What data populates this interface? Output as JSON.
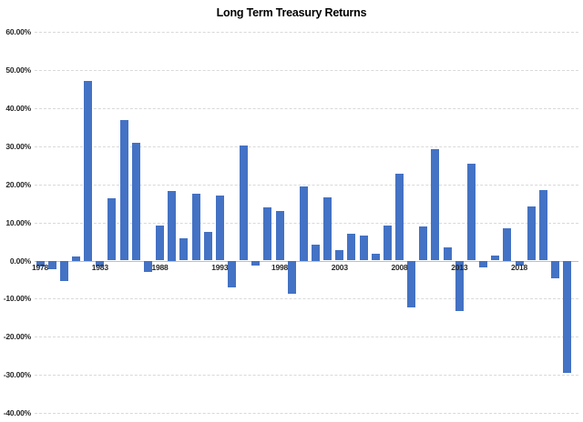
{
  "chart_data": {
    "type": "bar",
    "title": "Long Term Treasury Returns",
    "xlabel": "",
    "ylabel": "",
    "ylim": [
      -40,
      60
    ],
    "grid": "horizontal-dashed",
    "legend": "none",
    "bar_color": "#4472C4",
    "gridline_color": "#D9D9D9",
    "axis_line_color": "#BFBFBF",
    "label_color": "#262626",
    "y_ticks": [
      {
        "v": 60,
        "label": "60.00%"
      },
      {
        "v": 50,
        "label": "50.00%"
      },
      {
        "v": 40,
        "label": "40.00%"
      },
      {
        "v": 30,
        "label": "30.00%"
      },
      {
        "v": 20,
        "label": "20.00%"
      },
      {
        "v": 10,
        "label": "10.00%"
      },
      {
        "v": 0,
        "label": "0.00%"
      },
      {
        "v": -10,
        "label": "-10.00%"
      },
      {
        "v": -20,
        "label": "-20.00%"
      },
      {
        "v": -30,
        "label": "-30.00%"
      },
      {
        "v": -40,
        "label": "-40.00%"
      }
    ],
    "x_tick_labels": [
      "1978",
      "1983",
      "1988",
      "1993",
      "1998",
      "2003",
      "2008",
      "2013",
      "2018"
    ],
    "years": [
      1978,
      1979,
      1980,
      1981,
      1982,
      1983,
      1984,
      1985,
      1986,
      1987,
      1988,
      1989,
      1990,
      1991,
      1992,
      1993,
      1994,
      1995,
      1996,
      1997,
      1998,
      1999,
      2000,
      2001,
      2002,
      2003,
      2004,
      2005,
      2006,
      2007,
      2008,
      2009,
      2010,
      2011,
      2012,
      2013,
      2014,
      2015,
      2016,
      2017,
      2018,
      2019,
      2020,
      2021,
      2022
    ],
    "values": [
      -1.5,
      -2.2,
      -5.3,
      1.2,
      47.3,
      -1.5,
      16.4,
      37.0,
      31.0,
      -3.0,
      9.3,
      18.4,
      5.8,
      17.5,
      7.5,
      17.0,
      -7.0,
      30.2,
      -1.4,
      14.0,
      13.1,
      -8.7,
      19.6,
      4.3,
      16.7,
      2.7,
      7.1,
      6.6,
      1.7,
      9.3,
      22.8,
      -12.3,
      9.0,
      29.3,
      3.4,
      -13.2,
      25.5,
      -1.7,
      1.3,
      8.6,
      -1.4,
      14.3,
      18.6,
      -4.7,
      -29.4
    ]
  }
}
